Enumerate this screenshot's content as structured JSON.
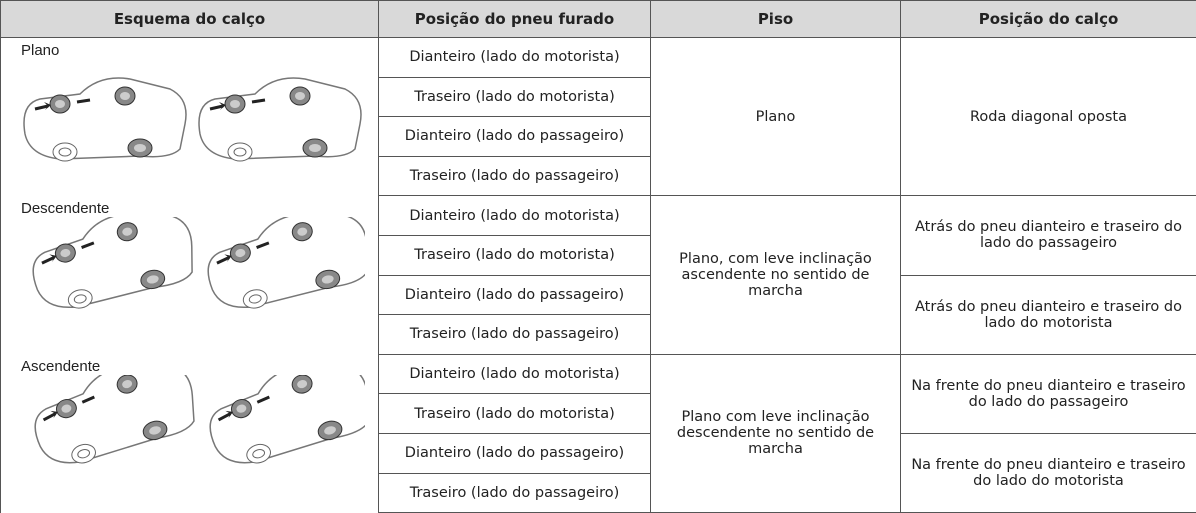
{
  "table": {
    "headers": [
      "Esquema do calço",
      "Posição do pneu furado",
      "Piso",
      "Posição do calço"
    ],
    "groups": [
      {
        "scheme": "Plano",
        "rows": [
          "Dianteiro (lado do motorista)",
          "Traseiro (lado do motorista)",
          "Dianteiro (lado do passageiro)",
          "Traseiro (lado do passageiro)"
        ],
        "floor": "Plano",
        "chock": [
          "Roda diagonal oposta"
        ]
      },
      {
        "scheme": "Descendente",
        "rows": [
          "Dianteiro (lado do motorista)",
          "Traseiro (lado do motorista)",
          "Dianteiro (lado do passageiro)",
          "Traseiro (lado do passageiro)"
        ],
        "floor": "Plano, com leve inclinação ascendente no sentido de marcha",
        "chock": [
          "Atrás do pneu dianteiro e traseiro do lado do passageiro",
          "Atrás do pneu dianteiro e traseiro do lado do motorista"
        ]
      },
      {
        "scheme": "Ascendente",
        "rows": [
          "Dianteiro (lado do motorista)",
          "Traseiro (lado do motorista)",
          "Dianteiro (lado do passageiro)",
          "Traseiro (lado do passageiro)"
        ],
        "floor": "Plano com leve inclinação descendente no sentido de marcha",
        "chock": [
          "Na frente do pneu dianteiro e traseiro do lado do passageiro",
          "Na frente do pneu dianteiro e traseiro do lado do motorista"
        ]
      }
    ]
  }
}
